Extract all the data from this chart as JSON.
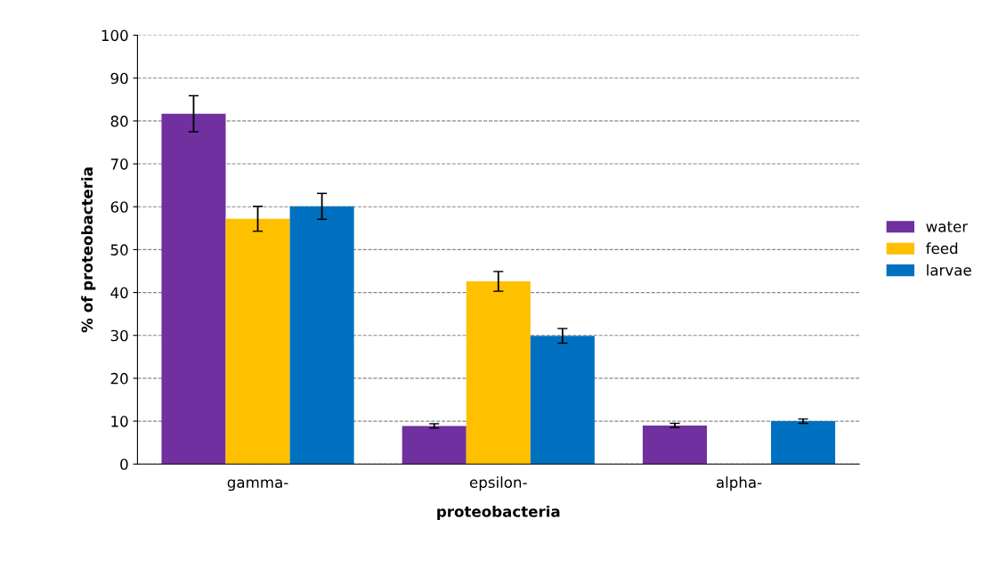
{
  "chart_data": {
    "type": "bar",
    "xlabel": "proteobacteria",
    "ylabel": "% of proteobacteria",
    "categories": [
      "gamma-",
      "epsilon-",
      "alpha-"
    ],
    "series": [
      {
        "name": "water",
        "color": "#7030a0",
        "values": [
          81.7,
          8.9,
          9.0
        ],
        "errors": [
          4.2,
          0.5,
          0.5
        ]
      },
      {
        "name": "feed",
        "color": "#ffc000",
        "values": [
          57.2,
          42.6,
          null
        ],
        "errors": [
          2.9,
          2.3,
          null
        ]
      },
      {
        "name": "larvae",
        "color": "#0070c0",
        "values": [
          60.1,
          29.9,
          10.0
        ],
        "errors": [
          3.0,
          1.7,
          0.5
        ]
      }
    ],
    "ylim": [
      0,
      100
    ],
    "yticks": [
      0,
      10,
      20,
      30,
      40,
      50,
      60,
      70,
      80,
      90,
      100
    ],
    "grid": "y",
    "legend": "right"
  }
}
